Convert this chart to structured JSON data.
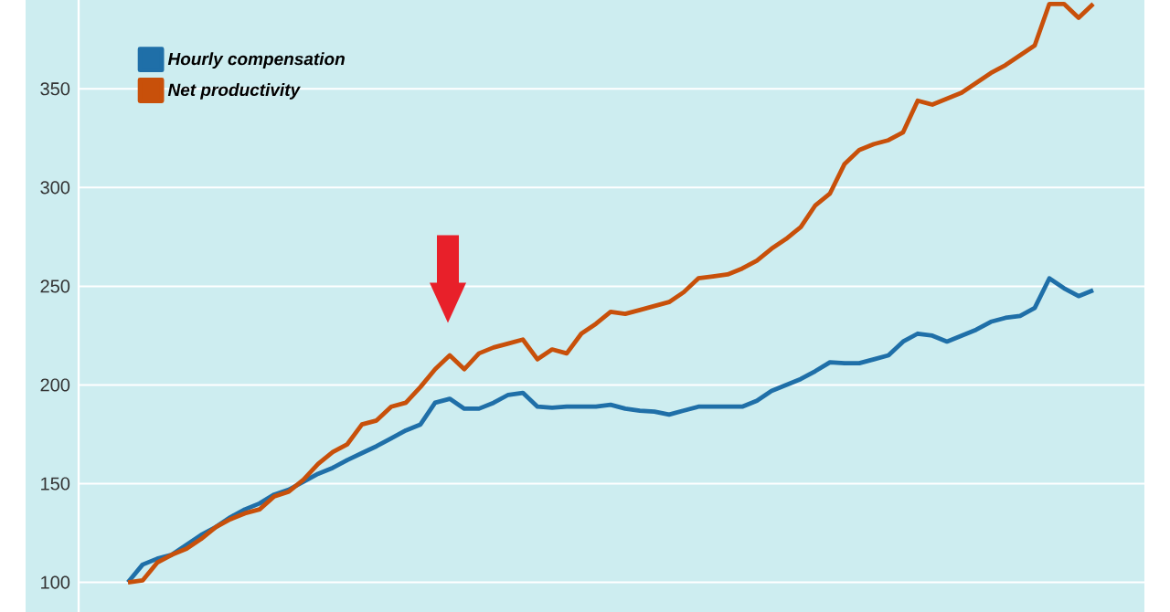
{
  "chart_data": {
    "type": "line",
    "categories": [
      null,
      null,
      null,
      null,
      null,
      null,
      null,
      null,
      null,
      null,
      null,
      null,
      null,
      null,
      null,
      null,
      null,
      null,
      null,
      null,
      null,
      null,
      null,
      null,
      null,
      null,
      null,
      null,
      null,
      null,
      null,
      null,
      null,
      null,
      null,
      null,
      null,
      null,
      null,
      null,
      null,
      null,
      null,
      null,
      null,
      null,
      null,
      null,
      null,
      null,
      null,
      null,
      null,
      null,
      null,
      null,
      null,
      null,
      null,
      null,
      null,
      null,
      null,
      null,
      null,
      null,
      null
    ],
    "series": [
      {
        "name": "Hourly compensation",
        "color": "#1f6fa8",
        "values": [
          100,
          109,
          112,
          114,
          119,
          124,
          128,
          133,
          137,
          140,
          144.5,
          147,
          151,
          155,
          158,
          162,
          165.5,
          169,
          173,
          177,
          180,
          191,
          193,
          188,
          188,
          191,
          195,
          196,
          189,
          188.5,
          189,
          189,
          189,
          190,
          188,
          187,
          186.5,
          185,
          187,
          189,
          189,
          189,
          189,
          192,
          197,
          200,
          203,
          207,
          211.5,
          211,
          211,
          213,
          215,
          222,
          226,
          225,
          222,
          225,
          228,
          232,
          234,
          235,
          239,
          254,
          249,
          245,
          248
        ]
      },
      {
        "name": "Net productivity",
        "color": "#c8500a",
        "values": [
          100,
          101,
          110,
          114,
          117,
          122,
          128,
          132,
          135,
          137,
          143.5,
          146,
          152,
          160,
          166,
          170,
          180,
          182,
          189,
          191,
          199,
          208,
          215,
          208,
          216,
          219,
          221,
          223,
          213,
          218,
          216,
          226,
          231,
          237,
          236,
          238,
          240,
          242,
          247,
          254,
          255,
          256,
          259,
          263,
          269,
          274,
          280,
          291,
          297,
          312,
          319,
          322,
          324,
          328,
          344,
          342,
          345,
          348,
          353,
          358,
          362,
          367,
          372,
          393,
          393,
          386,
          393
        ]
      }
    ],
    "ylim": [
      85,
      395
    ],
    "yticks": [
      100,
      150,
      200,
      250,
      300,
      350
    ],
    "grid": "y",
    "legend": "top left"
  }
}
